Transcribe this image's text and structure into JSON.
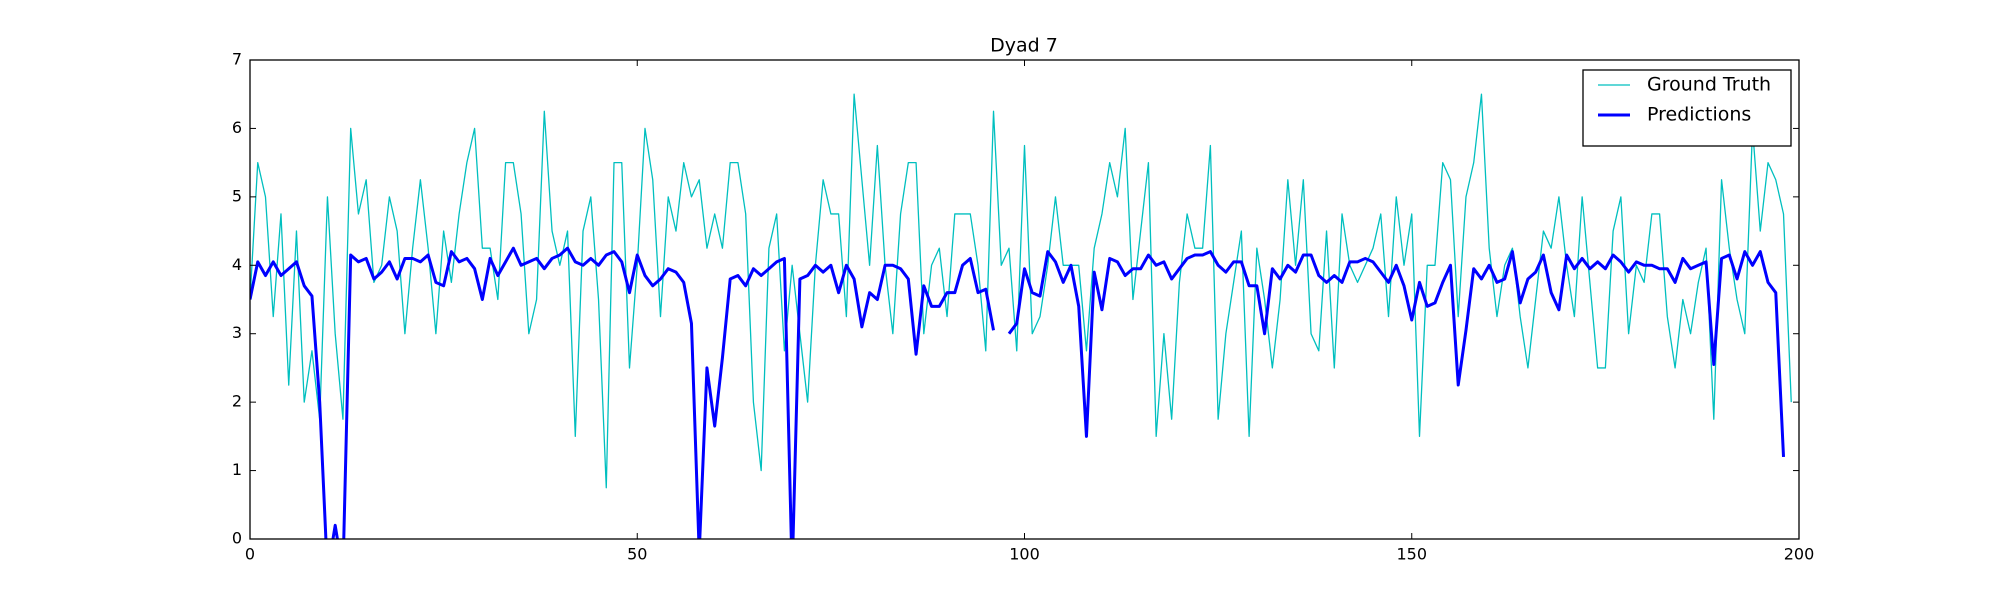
{
  "chart_data": {
    "type": "line",
    "title": "Dyad 7",
    "x": [
      0,
      1,
      2,
      3,
      4,
      5,
      6,
      7,
      8,
      9,
      10,
      11,
      12,
      13,
      14,
      15,
      16,
      17,
      18,
      19,
      20,
      21,
      22,
      23,
      24,
      25,
      26,
      27,
      28,
      29,
      30,
      31,
      32,
      33,
      34,
      35,
      36,
      37,
      38,
      39,
      40,
      41,
      42,
      43,
      44,
      45,
      46,
      47,
      48,
      49,
      50,
      51,
      52,
      53,
      54,
      55,
      56,
      57,
      58,
      59,
      60,
      61,
      62,
      63,
      64,
      65,
      66,
      67,
      68,
      69,
      70,
      71,
      72,
      73,
      74,
      75,
      76,
      77,
      78,
      79,
      80,
      81,
      82,
      83,
      84,
      85,
      86,
      87,
      88,
      89,
      90,
      91,
      92,
      93,
      94,
      95,
      96,
      97,
      98,
      99,
      100,
      101,
      102,
      103,
      104,
      105,
      106,
      107,
      108,
      109,
      110,
      111,
      112,
      113,
      114,
      115,
      116,
      117,
      118,
      119,
      120,
      121,
      122,
      123,
      124,
      125,
      126,
      127,
      128,
      129,
      130,
      131,
      132,
      133,
      134,
      135,
      136,
      137,
      138,
      139,
      140,
      141,
      142,
      143,
      144,
      145,
      146,
      147,
      148,
      149,
      150,
      151,
      152,
      153,
      154,
      155,
      156,
      157,
      158,
      159,
      160,
      161,
      162,
      163,
      164,
      165,
      166,
      167,
      168,
      169,
      170,
      171,
      172,
      173,
      174,
      175,
      176,
      177,
      178,
      179,
      180,
      181,
      182,
      183,
      184,
      185,
      186,
      187,
      188,
      189,
      190,
      191,
      192,
      193,
      194,
      195,
      196,
      197,
      198,
      199
    ],
    "series": [
      {
        "name": "Ground Truth",
        "color": "#00bfbf",
        "width": 1.3,
        "values": [
          3.5,
          5.5,
          5.0,
          3.25,
          4.75,
          2.25,
          4.5,
          2.0,
          2.75,
          1.75,
          5.0,
          3.0,
          1.75,
          6.0,
          4.75,
          5.25,
          3.75,
          4.0,
          5.0,
          4.5,
          3.0,
          4.25,
          5.25,
          4.25,
          3.0,
          4.5,
          3.75,
          4.75,
          5.5,
          6.0,
          4.25,
          4.25,
          3.5,
          5.5,
          5.5,
          4.75,
          3.0,
          3.5,
          6.25,
          4.5,
          4.0,
          4.5,
          1.5,
          4.5,
          5.0,
          3.5,
          0.75,
          5.5,
          5.5,
          2.5,
          4.0,
          6.0,
          5.25,
          3.25,
          5.0,
          4.5,
          5.5,
          5.0,
          5.25,
          4.25,
          4.75,
          4.25,
          5.5,
          5.5,
          4.75,
          2.0,
          1.0,
          4.25,
          4.75,
          2.75,
          4.0,
          3.0,
          2.0,
          4.0,
          5.25,
          4.75,
          4.75,
          3.25,
          6.5,
          5.25,
          4.0,
          5.75,
          4.0,
          3.0,
          4.75,
          5.5,
          5.5,
          3.0,
          4.0,
          4.25,
          3.25,
          4.75,
          4.75,
          4.75,
          4.0,
          2.75,
          6.25,
          4.0,
          4.25,
          2.75,
          5.75,
          3.0,
          3.25,
          4.0,
          5.0,
          4.0,
          4.0,
          4.0,
          2.75,
          4.25,
          4.75,
          5.5,
          5.0,
          6.0,
          3.5,
          4.5,
          5.5,
          1.5,
          3.0,
          1.75,
          3.75,
          4.75,
          4.25,
          4.25,
          5.75,
          1.75,
          3.0,
          3.75,
          4.5,
          1.5,
          4.25,
          3.5,
          2.5,
          3.5,
          5.25,
          4.0,
          5.25,
          3.0,
          2.75,
          4.5,
          2.5,
          4.75,
          4.0,
          3.75,
          4.0,
          4.25,
          4.75,
          3.25,
          5.0,
          4.0,
          4.75,
          1.5,
          4.0,
          4.0,
          5.5,
          5.25,
          3.25,
          5.0,
          5.5,
          6.5,
          4.25,
          3.25,
          4.0,
          4.25,
          3.25,
          2.5,
          3.5,
          4.5,
          4.25,
          5.0,
          4.0,
          3.25,
          5.0,
          3.75,
          2.5,
          2.5,
          4.5,
          5.0,
          3.0,
          4.0,
          3.75,
          4.75,
          4.75,
          3.25,
          2.5,
          3.5,
          3.0,
          3.75,
          4.25,
          1.75,
          5.25,
          4.25,
          3.5,
          3.0,
          6.0,
          4.5,
          5.5,
          5.25,
          4.75,
          2.0
        ]
      },
      {
        "name": "Predictions",
        "color": "#0000ff",
        "width": 3,
        "values": [
          3.5,
          4.05,
          3.85,
          4.05,
          3.85,
          3.95,
          4.05,
          3.7,
          3.55,
          2.0,
          -0.5,
          0.2,
          -0.5,
          4.15,
          4.05,
          4.1,
          3.8,
          3.9,
          4.05,
          3.8,
          4.1,
          4.1,
          4.05,
          4.15,
          3.75,
          3.7,
          4.2,
          4.05,
          4.1,
          3.95,
          3.5,
          4.1,
          3.85,
          4.05,
          4.25,
          4.0,
          4.05,
          4.1,
          3.95,
          4.1,
          4.15,
          4.25,
          4.05,
          4.0,
          4.1,
          4.0,
          4.15,
          4.2,
          4.05,
          3.6,
          4.15,
          3.85,
          3.7,
          3.8,
          3.95,
          3.9,
          3.75,
          3.15,
          -0.2,
          2.5,
          1.65,
          2.65,
          3.8,
          3.85,
          3.7,
          3.95,
          3.85,
          3.95,
          4.05,
          4.1,
          -0.5,
          3.8,
          3.85,
          4.0,
          3.9,
          4.0,
          3.6,
          4.0,
          3.8,
          3.1,
          3.6,
          3.5,
          4.0,
          4.0,
          3.95,
          3.8,
          2.7,
          3.7,
          3.4,
          3.4,
          3.6,
          3.6,
          4.0,
          4.1,
          3.6,
          3.65,
          3.05,
          null,
          3.0,
          3.15,
          3.95,
          3.6,
          3.55,
          4.2,
          4.05,
          3.75,
          4.0,
          3.4,
          1.5,
          3.9,
          3.35,
          4.1,
          4.05,
          3.85,
          3.95,
          3.95,
          4.15,
          4.0,
          4.05,
          3.8,
          3.95,
          4.1,
          4.15,
          4.15,
          4.2,
          4.0,
          3.9,
          4.05,
          4.05,
          3.7,
          3.7,
          3.0,
          3.95,
          3.8,
          4.0,
          3.9,
          4.15,
          4.15,
          3.85,
          3.75,
          3.85,
          3.75,
          4.05,
          4.05,
          4.1,
          4.05,
          3.9,
          3.75,
          4.0,
          3.7,
          3.2,
          3.75,
          3.4,
          3.45,
          3.75,
          4.0,
          2.25,
          3.05,
          3.95,
          3.8,
          4.0,
          3.75,
          3.8,
          4.2,
          3.45,
          3.8,
          3.9,
          4.15,
          3.6,
          3.35,
          4.15,
          3.95,
          4.1,
          3.95,
          4.05,
          3.95,
          4.15,
          4.05,
          3.9,
          4.05,
          4.0,
          4.0,
          3.95,
          3.95,
          3.75,
          4.1,
          3.95,
          4.0,
          4.05,
          2.55,
          4.1,
          4.15,
          3.8,
          4.2,
          4.0,
          4.2,
          3.75,
          3.6,
          1.2,
          null
        ]
      }
    ],
    "xlim": [
      0,
      200
    ],
    "xticks": [
      0,
      50,
      100,
      150,
      200
    ],
    "ylim": [
      0,
      7
    ],
    "yticks": [
      0,
      1,
      2,
      3,
      4,
      5,
      6,
      7
    ],
    "legend": "upper right"
  }
}
